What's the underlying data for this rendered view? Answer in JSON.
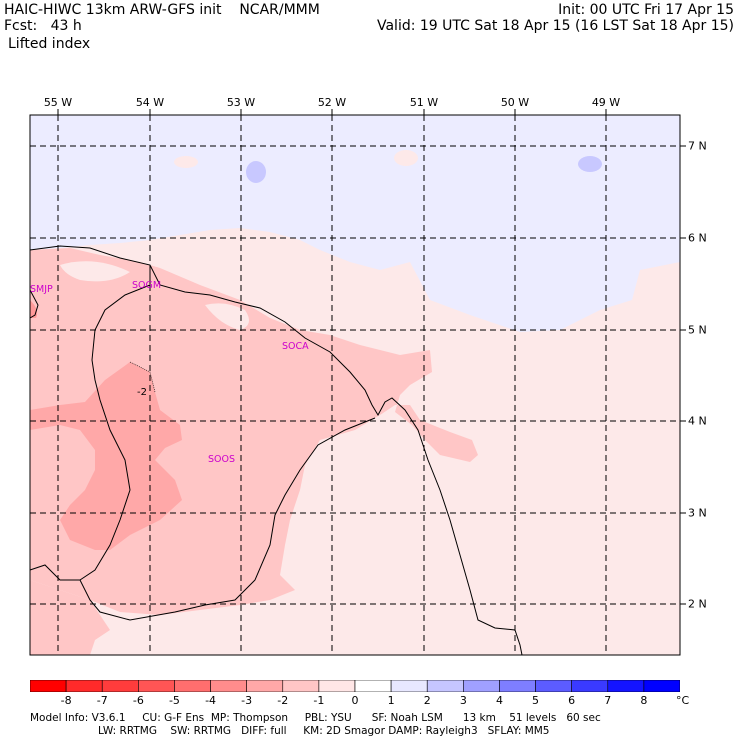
{
  "header": {
    "model_line": "HAIC-HIWC 13km ARW-GFS init",
    "org": "NCAR/MMM",
    "fcst_line": "Fcst:   43 h",
    "init_line": "Init: 00 UTC Fri 17 Apr 15",
    "valid_line": "Valid: 19 UTC Sat 18 Apr 15 (16 LST Sat 18 Apr 15)",
    "field": "Lifted index"
  },
  "longitude_labels": [
    "55 W",
    "54 W",
    "53 W",
    "52 W",
    "51 W",
    "50 W",
    "49 W"
  ],
  "latitude_labels": [
    "7 N",
    "6 N",
    "5 N",
    "4 N",
    "3 N",
    "2 N"
  ],
  "stations": [
    "SMJP",
    "SOGM",
    "SOCA",
    "SOOS"
  ],
  "contour_label": "-2",
  "colorbar": {
    "labels": [
      "-8",
      "-7",
      "-6",
      "-5",
      "-4",
      "-3",
      "-2",
      "-1",
      "0",
      "1",
      "2",
      "3",
      "4",
      "5",
      "6",
      "7",
      "8"
    ],
    "unit": "°C",
    "colors": [
      "#ff0000",
      "#ff2a2a",
      "#ff3c3c",
      "#ff5555",
      "#ff6e6e",
      "#ff8c8c",
      "#ffa8a8",
      "#ffc6c6",
      "#ffe6e6",
      "#ffffff",
      "#e8e8ff",
      "#c6c6ff",
      "#a0a0ff",
      "#7e7eff",
      "#5c5cff",
      "#3a3aff",
      "#1414ff",
      "#0000ff"
    ]
  },
  "footer": {
    "line1": "Model Info: V3.6.1     CU: G-F Ens  MP: Thompson     PBL: YSU      SF: Noah LSM      13 km    51 levels   60 sec",
    "line2": "LW: RRTMG    SW: RRTMG   DIFF: full     KM: 2D Smagor DAMP: Rayleigh3   SFLAY: MM5"
  }
}
